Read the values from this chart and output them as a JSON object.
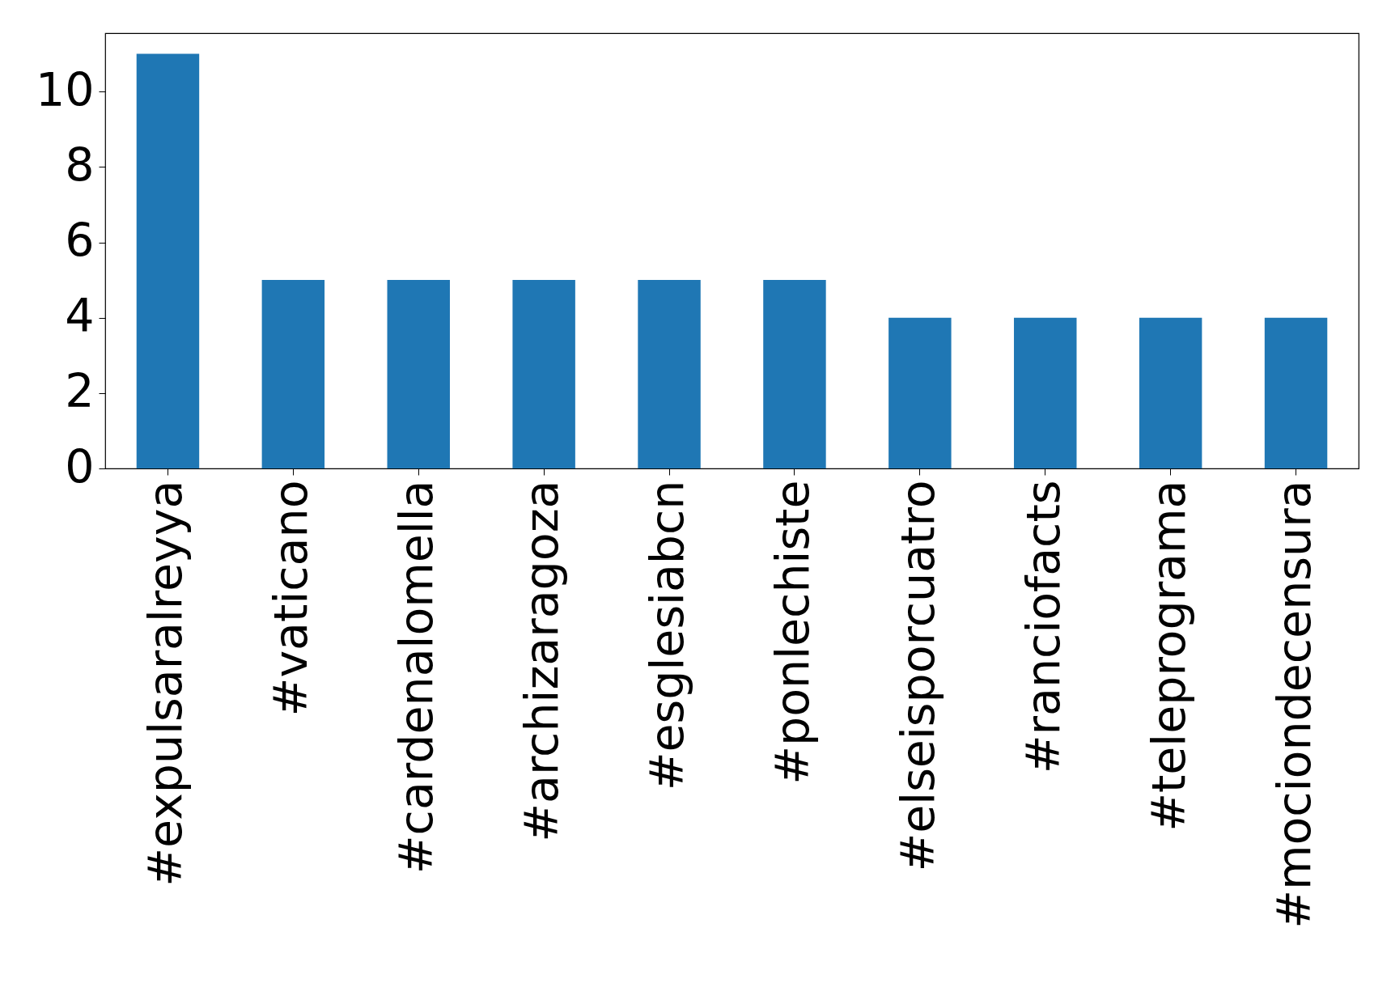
{
  "chart_data": {
    "type": "bar",
    "categories": [
      "#expulsaralreyya",
      "#vaticano",
      "#cardenalomella",
      "#archizaragoza",
      "#esglesiabcn",
      "#ponlechiste",
      "#elseisporcuatro",
      "#ranciofacts",
      "#teleprograma",
      "#mociondecensura"
    ],
    "values": [
      11,
      5,
      5,
      5,
      5,
      5,
      4,
      4,
      4,
      4
    ],
    "color": "#1f77b4",
    "ylim": [
      0,
      11.55
    ],
    "yticks": [
      0,
      2,
      4,
      6,
      8,
      10
    ],
    "grid": false
  }
}
